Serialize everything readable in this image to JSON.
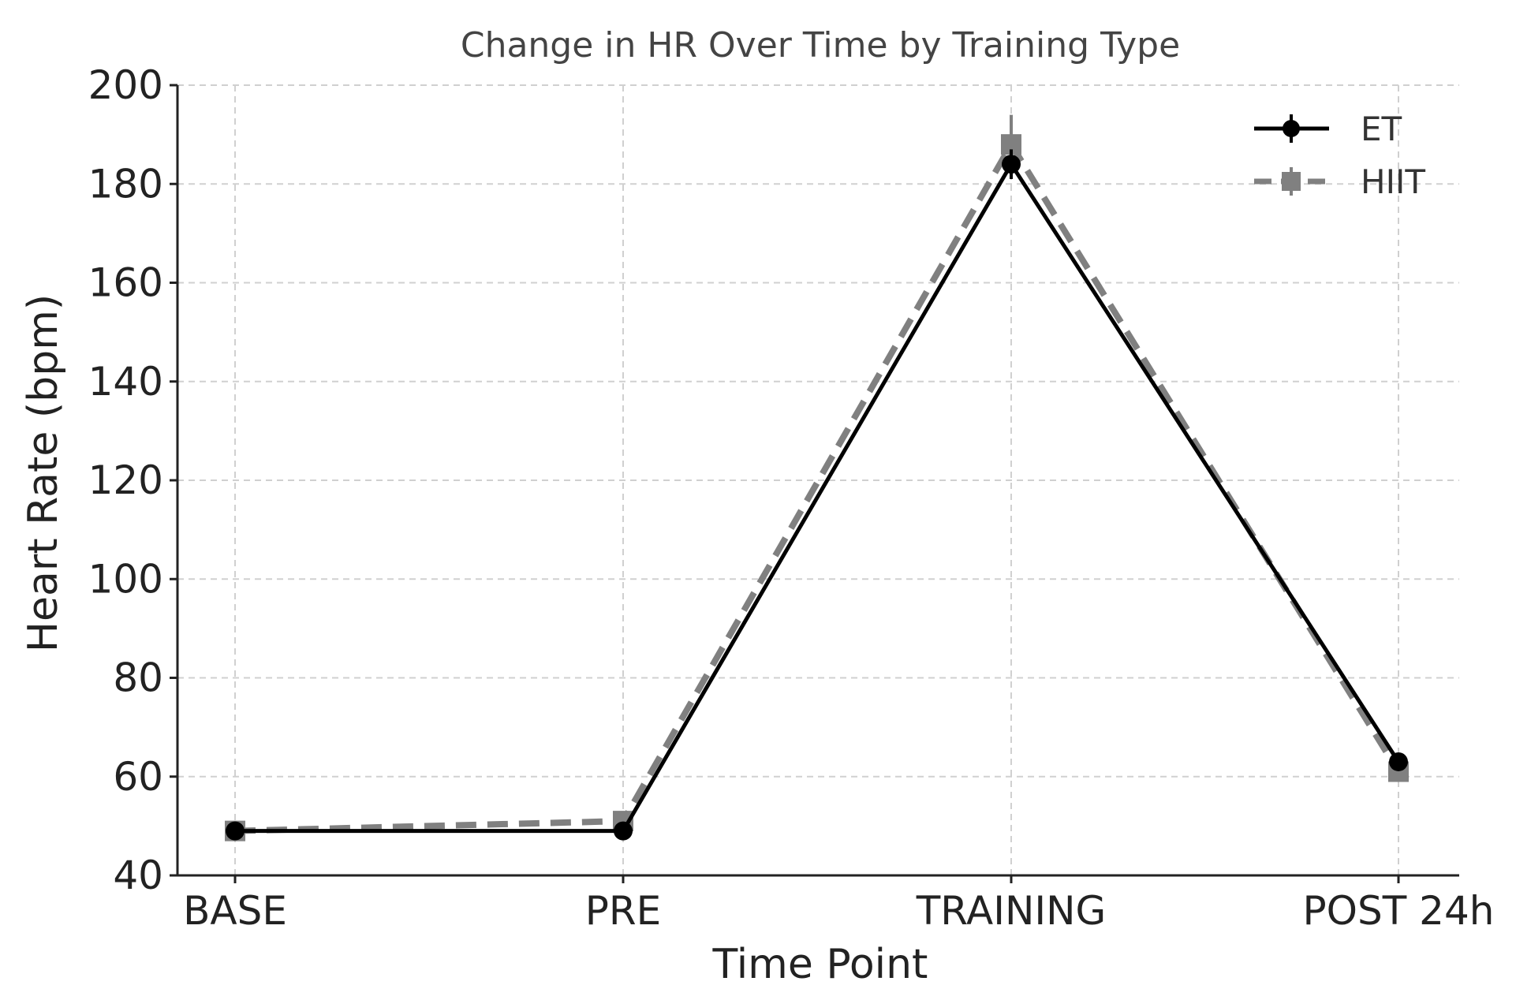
{
  "chart_data": {
    "type": "line",
    "title": "Change in HR Over Time by Training Type",
    "xlabel": "Time Point",
    "ylabel": "Heart Rate (bpm)",
    "categories": [
      "BASE",
      "PRE",
      "TRAINING",
      "POST 24h"
    ],
    "ylim": [
      40,
      200
    ],
    "yticks": [
      40,
      60,
      80,
      100,
      120,
      140,
      160,
      180,
      200
    ],
    "grid": true,
    "legend_position": "top-right",
    "series": [
      {
        "name": "ET",
        "values": [
          49,
          49,
          184,
          63
        ],
        "errors": [
          0.5,
          0.5,
          3,
          1
        ],
        "color": "#000000",
        "line_style": "solid",
        "marker": "circle"
      },
      {
        "name": "HIIT",
        "values": [
          49,
          51,
          188,
          61
        ],
        "errors": [
          0.5,
          0.5,
          6,
          1.5
        ],
        "color": "#808080",
        "line_style": "dashed",
        "marker": "square"
      }
    ]
  }
}
